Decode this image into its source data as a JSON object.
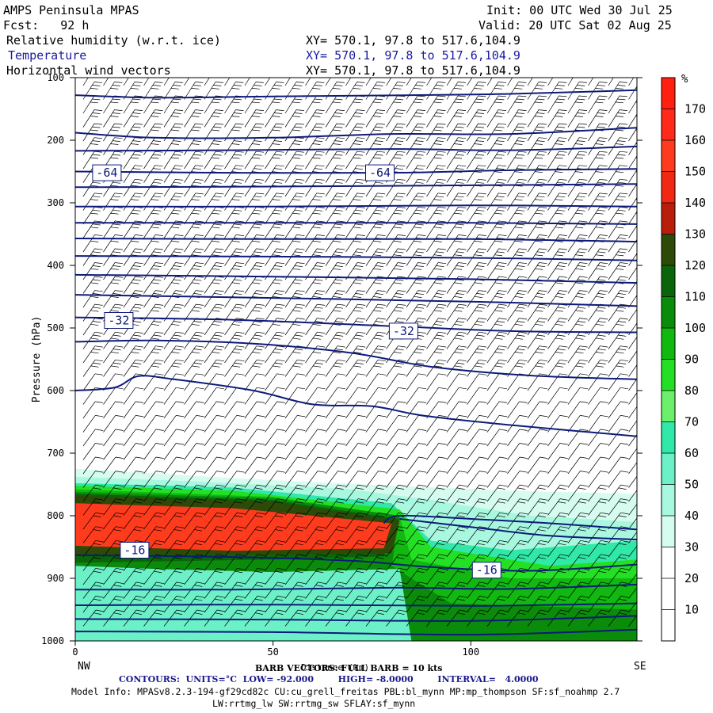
{
  "header": {
    "model_title": "AMPS Peninsula MPAS",
    "init": "Init: 00 UTC Wed 30 Jul 25",
    "fcst": "Fcst:   92 h",
    "valid": "Valid: 20 UTC Sat 02 Aug 25",
    "field_1": "Relative humidity (w.r.t. ice)",
    "field_2": "Temperature",
    "field_3": "Horizontal wind vectors",
    "xy_1": "XY= 570.1, 97.8 to 517.6,104.9",
    "xy_2": "XY= 570.1, 97.8 to 517.6,104.9",
    "xy_3": "XY= 570.1, 97.8 to 517.6,104.9"
  },
  "footer": {
    "barb_text": "BARB VECTORS: FULL BARB = 10 kts",
    "distance_text": "Distance (km)",
    "contours_text": "CONTOURS:  UNITS=°C  LOW= -92.000        HIGH= -8.0000        INTERVAL=   4.0000",
    "model_info": "Model Info: MPASv8.2.3-194-gf29cd82c CU:cu_grell_freitas PBL:bl_mynn MP:mp_thompson SF:sf_noahmp 2.7",
    "model_info_2": "LW:rrtmg_lw SW:rrtmg_sw SFLAY:sf_mynn"
  },
  "colors": {
    "contour": "#0d1a7a",
    "contour_label": "#0d1a7a",
    "rh_scale": [
      "#ffffff",
      "#ffffff",
      "#ffffff",
      "#d6fcf0",
      "#a8f8e0",
      "#6cf0c8",
      "#30e8a8",
      "#6cf06c",
      "#24e024",
      "#10b810",
      "#0a8c0a",
      "#0a640a",
      "#2e4a08",
      "#b81e0a",
      "#f02814",
      "#ff3b1e",
      "#ff2a1a",
      "#ff2010"
    ]
  },
  "chart_data": {
    "type": "cross-section",
    "ylabel": "Pressure (hPa)",
    "xlabel": "Distance (km)",
    "left_end_label": "NW",
    "right_end_label": "SE",
    "x_range": [
      0,
      142
    ],
    "y_range": [
      1000,
      100
    ],
    "x_ticks": [
      0,
      50,
      100
    ],
    "y_ticks": [
      100,
      200,
      300,
      400,
      500,
      600,
      700,
      800,
      900,
      1000
    ],
    "colorbar": {
      "unit_label": "%",
      "levels": [
        10,
        20,
        30,
        40,
        50,
        60,
        70,
        80,
        90,
        100,
        110,
        120,
        130,
        140,
        150,
        160,
        170
      ],
      "range": [
        0,
        180
      ]
    },
    "contour_labels": [
      {
        "text": "-64",
        "x": 8,
        "p": 252
      },
      {
        "text": "-64",
        "x": 77,
        "p": 252
      },
      {
        "text": "-32",
        "x": 11,
        "p": 488
      },
      {
        "text": "-32",
        "x": 83,
        "p": 505
      },
      {
        "text": "-16",
        "x": 15,
        "p": 855
      },
      {
        "text": "-16",
        "x": 104,
        "p": 887
      }
    ],
    "isotherms": [
      {
        "temp": -76,
        "points": [
          [
            0,
            128
          ],
          [
            20,
            132
          ],
          [
            50,
            130
          ],
          [
            85,
            128
          ],
          [
            110,
            126
          ],
          [
            142,
            120
          ]
        ]
      },
      {
        "temp": -72,
        "points": [
          [
            0,
            188
          ],
          [
            20,
            196
          ],
          [
            50,
            196
          ],
          [
            80,
            190
          ],
          [
            110,
            190
          ],
          [
            142,
            180
          ]
        ]
      },
      {
        "temp": -68,
        "points": [
          [
            0,
            217
          ],
          [
            40,
            216
          ],
          [
            80,
            214
          ],
          [
            110,
            216
          ],
          [
            142,
            210
          ]
        ]
      },
      {
        "temp": -64,
        "points": [
          [
            0,
            250
          ],
          [
            40,
            252
          ],
          [
            80,
            252
          ],
          [
            110,
            248
          ],
          [
            142,
            246
          ]
        ]
      },
      {
        "temp": -60,
        "points": [
          [
            0,
            275
          ],
          [
            50,
            274
          ],
          [
            100,
            272
          ],
          [
            142,
            270
          ]
        ]
      },
      {
        "temp": -56,
        "points": [
          [
            0,
            306
          ],
          [
            50,
            306
          ],
          [
            100,
            304
          ],
          [
            142,
            306
          ]
        ]
      },
      {
        "temp": -52,
        "points": [
          [
            0,
            332
          ],
          [
            50,
            332
          ],
          [
            100,
            332
          ],
          [
            142,
            334
          ]
        ]
      },
      {
        "temp": -48,
        "points": [
          [
            0,
            357
          ],
          [
            50,
            358
          ],
          [
            100,
            358
          ],
          [
            142,
            362
          ]
        ]
      },
      {
        "temp": -44,
        "points": [
          [
            0,
            385
          ],
          [
            50,
            386
          ],
          [
            100,
            388
          ],
          [
            142,
            392
          ]
        ]
      },
      {
        "temp": -40,
        "points": [
          [
            0,
            415
          ],
          [
            50,
            418
          ],
          [
            100,
            422
          ],
          [
            142,
            428
          ]
        ]
      },
      {
        "temp": -36,
        "points": [
          [
            0,
            447
          ],
          [
            50,
            452
          ],
          [
            100,
            458
          ],
          [
            142,
            465
          ]
        ]
      },
      {
        "temp": -32,
        "points": [
          [
            0,
            483
          ],
          [
            40,
            487
          ],
          [
            80,
            497
          ],
          [
            110,
            505
          ],
          [
            142,
            507
          ]
        ]
      },
      {
        "temp": -28,
        "points": [
          [
            0,
            522
          ],
          [
            20,
            520
          ],
          [
            45,
            525
          ],
          [
            70,
            540
          ],
          [
            90,
            562
          ],
          [
            115,
            576
          ],
          [
            142,
            582
          ]
        ]
      },
      {
        "temp": -24,
        "points": [
          [
            0,
            600
          ],
          [
            10,
            595
          ],
          [
            16,
            577
          ],
          [
            25,
            582
          ],
          [
            45,
            600
          ],
          [
            60,
            622
          ],
          [
            75,
            625
          ],
          [
            88,
            640
          ],
          [
            110,
            655
          ],
          [
            142,
            673
          ]
        ]
      },
      {
        "temp": -20,
        "points": [
          [
            78,
            812
          ],
          [
            80,
            802
          ],
          [
            85,
            800
          ],
          [
            100,
            805
          ],
          [
            120,
            812
          ],
          [
            142,
            822
          ]
        ]
      },
      {
        "temp": -18,
        "points": [
          [
            82,
            805
          ],
          [
            100,
            818
          ],
          [
            120,
            832
          ],
          [
            142,
            838
          ]
        ]
      },
      {
        "temp": -16,
        "points": [
          [
            0,
            863
          ],
          [
            40,
            866
          ],
          [
            70,
            872
          ],
          [
            90,
            882
          ],
          [
            115,
            888
          ],
          [
            142,
            878
          ]
        ]
      },
      {
        "temp": -14,
        "points": [
          [
            0,
            918
          ],
          [
            40,
            918
          ],
          [
            80,
            915
          ],
          [
            110,
            917
          ],
          [
            142,
            910
          ]
        ]
      },
      {
        "temp": -12,
        "points": [
          [
            0,
            943
          ],
          [
            50,
            942
          ],
          [
            100,
            944
          ],
          [
            142,
            940
          ]
        ]
      },
      {
        "temp": -10,
        "points": [
          [
            0,
            965
          ],
          [
            50,
            966
          ],
          [
            100,
            968
          ],
          [
            142,
            960
          ]
        ]
      },
      {
        "temp": -8,
        "points": [
          [
            0,
            985
          ],
          [
            50,
            986
          ],
          [
            100,
            990
          ],
          [
            142,
            982
          ]
        ]
      }
    ],
    "rh_shading": [
      {
        "rh": 30,
        "points": [
          [
            0,
            725
          ],
          [
            15,
            730
          ],
          [
            40,
            740
          ],
          [
            80,
            752
          ],
          [
            110,
            760
          ],
          [
            142,
            765
          ],
          [
            142,
            1000
          ],
          [
            0,
            1000
          ]
        ]
      },
      {
        "rh": 40,
        "points": [
          [
            0,
            738
          ],
          [
            30,
            745
          ],
          [
            70,
            758
          ],
          [
            90,
            775
          ],
          [
            115,
            800
          ],
          [
            142,
            810
          ],
          [
            142,
            1000
          ],
          [
            0,
            1000
          ]
        ]
      },
      {
        "rh": 60,
        "points": [
          [
            0,
            748
          ],
          [
            40,
            755
          ],
          [
            80,
            780
          ],
          [
            90,
            840
          ],
          [
            110,
            855
          ],
          [
            142,
            840
          ],
          [
            142,
            1000
          ],
          [
            0,
            1000
          ]
        ]
      },
      {
        "rh": 80,
        "points": [
          [
            0,
            752
          ],
          [
            40,
            760
          ],
          [
            82,
            790
          ],
          [
            90,
            850
          ],
          [
            120,
            880
          ],
          [
            142,
            870
          ],
          [
            142,
            1000
          ],
          [
            0,
            1000
          ]
        ]
      },
      {
        "rh": 90,
        "points": [
          [
            0,
            758
          ],
          [
            50,
            770
          ],
          [
            82,
            800
          ],
          [
            85,
            870
          ],
          [
            110,
            900
          ],
          [
            142,
            900
          ],
          [
            142,
            1000
          ],
          [
            0,
            1000
          ]
        ]
      },
      {
        "rh": 100,
        "points": [
          [
            0,
            762
          ],
          [
            50,
            772
          ],
          [
            82,
            800
          ],
          [
            80,
            880
          ],
          [
            95,
            940
          ],
          [
            142,
            950
          ],
          [
            142,
            1000
          ],
          [
            0,
            1000
          ]
        ]
      },
      {
        "rh": 110,
        "points": [
          [
            0,
            765
          ],
          [
            50,
            775
          ],
          [
            82,
            805
          ],
          [
            78,
            865
          ],
          [
            50,
            870
          ],
          [
            0,
            875
          ]
        ]
      },
      {
        "rh": 125,
        "points": [
          [
            0,
            768
          ],
          [
            50,
            778
          ],
          [
            82,
            808
          ],
          [
            80,
            860
          ],
          [
            50,
            862
          ],
          [
            0,
            862
          ]
        ]
      },
      {
        "rh": 150,
        "points": [
          [
            0,
            780
          ],
          [
            40,
            788
          ],
          [
            80,
            812
          ],
          [
            78,
            852
          ],
          [
            40,
            856
          ],
          [
            0,
            848
          ]
        ]
      },
      {
        "rh": 55,
        "points": [
          [
            0,
            880
          ],
          [
            20,
            885
          ],
          [
            50,
            890
          ],
          [
            82,
            885
          ],
          [
            85,
            1000
          ],
          [
            0,
            1000
          ]
        ]
      }
    ],
    "barbs": {
      "full_barb_kts": 10,
      "direction_note": "northwesterly to westerly"
    }
  }
}
